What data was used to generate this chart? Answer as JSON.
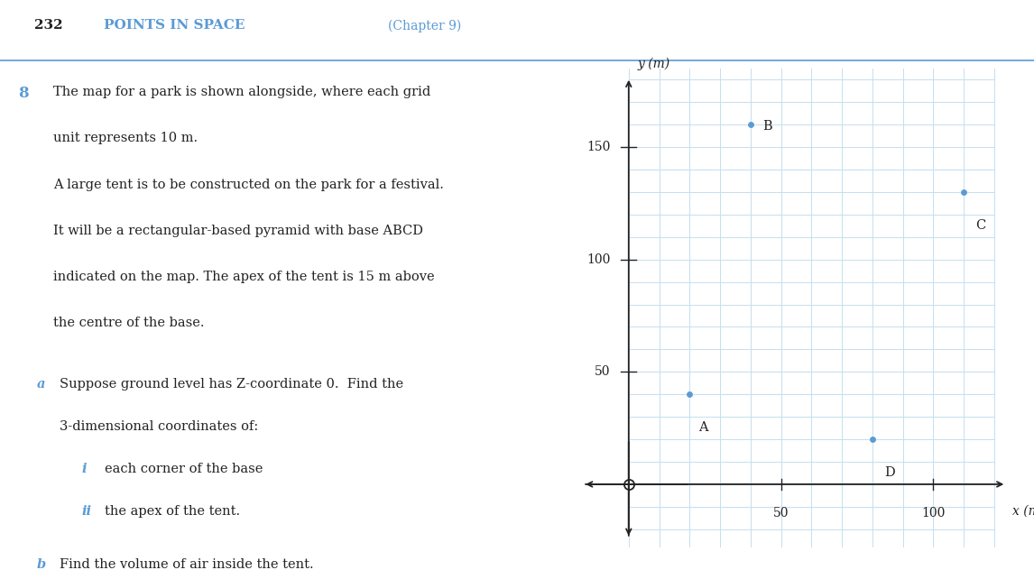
{
  "page_number": "232",
  "chapter_title": "POINTS IN SPACE",
  "chapter_subtitle": "(Chapter 9)",
  "question_number": "8",
  "question_text_lines": [
    "The map for a park is shown alongside, where each grid",
    "unit represents 10 m.",
    "A large tent is to be constructed on the park for a festival.",
    "It will be a rectangular-based pyramid with base ABCD",
    "indicated on the map. The apex of the tent is 15 m above",
    "the centre of the base."
  ],
  "points": {
    "A": [
      20,
      40
    ],
    "B": [
      40,
      160
    ],
    "C": [
      110,
      130
    ],
    "D": [
      80,
      20
    ]
  },
  "point_color": "#5b9bd5",
  "point_label_color": "#222222",
  "grid_color": "#c5dff0",
  "axis_color": "#222222",
  "xlabel": "x (m)",
  "ylabel": "y (m)",
  "xlim": [
    -18,
    128
  ],
  "ylim": [
    -28,
    185
  ],
  "xticks": [
    50,
    100
  ],
  "yticks": [
    50,
    100,
    150
  ],
  "grid_step": 10,
  "background_color": "#ffffff",
  "blue_color": "#5b9bd5",
  "dark_color": "#222222",
  "title_line_color": "#5b9bd5"
}
